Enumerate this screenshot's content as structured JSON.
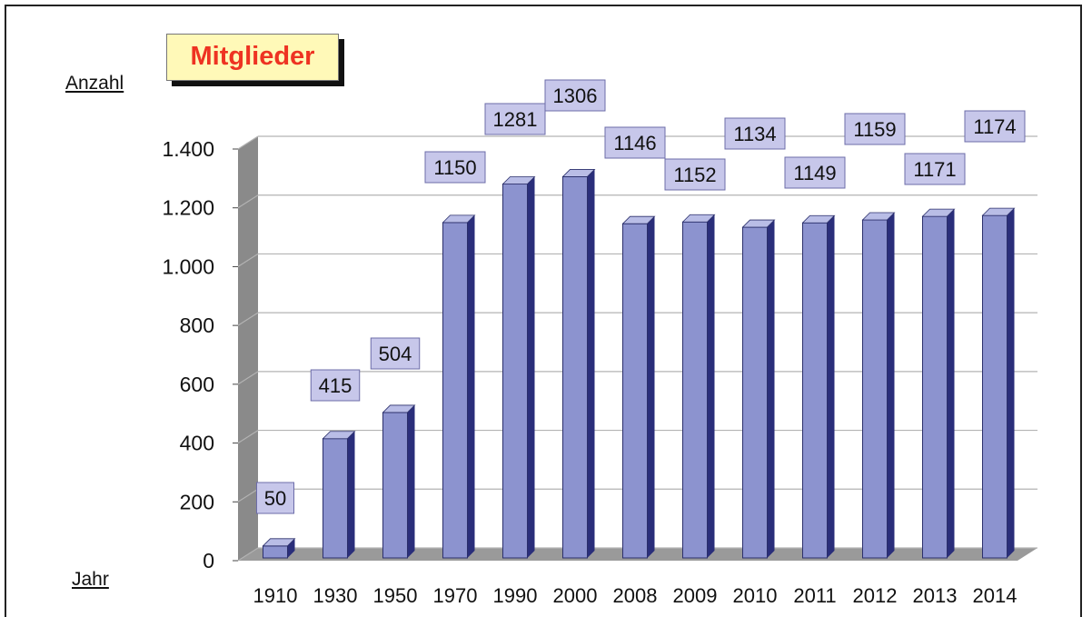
{
  "title": "Mitglieder",
  "colors": {
    "bar_front": "#8c93cf",
    "bar_side": "#2a2e7a",
    "bar_top": "#b9bde6",
    "label_box": "#c7c7ea",
    "title_text": "#ee3322",
    "title_bg": "#fff9b8"
  },
  "chart_data": {
    "type": "bar",
    "title": "Mitglieder",
    "xlabel": "Jahr",
    "ylabel": "Anzahl",
    "categories": [
      "1910",
      "1930",
      "1950",
      "1970",
      "1990",
      "2000",
      "2008",
      "2009",
      "2010",
      "2011",
      "2012",
      "2013",
      "2014"
    ],
    "values": [
      50,
      415,
      504,
      1150,
      1281,
      1306,
      1146,
      1152,
      1134,
      1149,
      1159,
      1171,
      1174
    ],
    "data_labels": [
      "50",
      "415",
      "504",
      "1150",
      "1281",
      "1306",
      "1146",
      "1152",
      "1134",
      "1149",
      "1159",
      "1171",
      "1174"
    ],
    "yticks": [
      0,
      200,
      400,
      600,
      800,
      1000,
      1200,
      1400
    ],
    "ytick_labels": [
      "0",
      "200",
      "400",
      "600",
      "800",
      "1.000",
      "1.200",
      "1.400"
    ],
    "ylim": [
      0,
      1400
    ],
    "grid": true,
    "legend": "none",
    "style": "3d"
  }
}
